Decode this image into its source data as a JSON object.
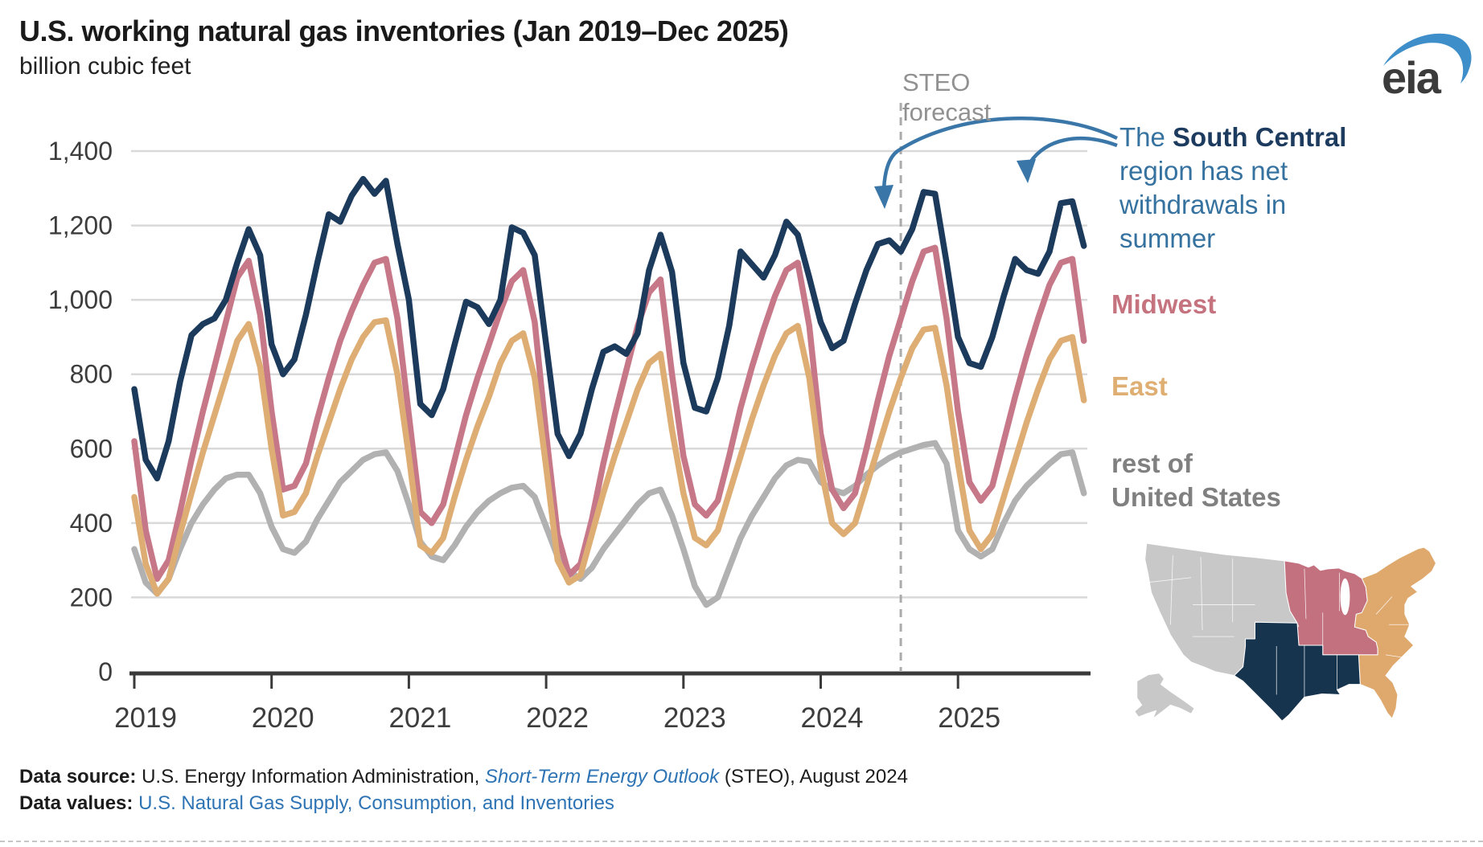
{
  "title": "U.S. working natural gas inventories (Jan 2019–Dec 2025)",
  "subtitle": "billion cubic feet",
  "logo_text": "eia",
  "forecast_label": {
    "line1": "STEO",
    "line2": "forecast"
  },
  "annotation": {
    "line1_pre": "The ",
    "line1_bold": "South Central",
    "line2": "region has net",
    "line3": "withdrawals in",
    "line4": "summer"
  },
  "series_labels": {
    "midwest": "Midwest",
    "east": "East",
    "rest_line1": "rest of",
    "rest_line2": "United States"
  },
  "footer": {
    "source_label": "Data source: ",
    "source_text": "U.S. Energy Information Administration, ",
    "source_link": "Short-Term Energy Outlook",
    "source_rest": " (STEO), August 2024",
    "values_label": "Data values: ",
    "values_link": "U.S. Natural Gas Supply, Consumption, and Inventories"
  },
  "colors": {
    "south_central": "#1c3b5c",
    "midwest": "#c77888",
    "east": "#ddad74",
    "rest_us": "#b1b1b1",
    "grid": "#d9d9d9",
    "axis": "#3a3a3a",
    "forecast_line": "#ababab",
    "arrow_blue": "#3a77a8",
    "logo_blue": "#3e8ec9",
    "logo_gray": "#3b3b3b"
  },
  "map": {
    "regions": [
      {
        "id": "west",
        "name": "rest of United States",
        "color": "#c8c8c8"
      },
      {
        "id": "midwest",
        "name": "Midwest",
        "color": "#c4717f"
      },
      {
        "id": "east",
        "name": "East",
        "color": "#dfa96e"
      },
      {
        "id": "southcentral",
        "name": "South Central",
        "color": "#17344f"
      },
      {
        "id": "alaska",
        "name": "Alaska (rest of United States)",
        "color": "#c8c8c8"
      }
    ]
  },
  "chart_data": {
    "type": "line",
    "title": "U.S. working natural gas inventories (Jan 2019–Dec 2025)",
    "xlabel": "",
    "ylabel": "billion cubic feet",
    "x_start": "2019-01",
    "x_end": "2025-12",
    "x_frequency": "monthly",
    "xtick_labels": [
      "2019",
      "2020",
      "2021",
      "2022",
      "2023",
      "2024",
      "2025"
    ],
    "ylim": [
      0,
      1400
    ],
    "ytick_values": [
      0,
      200,
      400,
      600,
      800,
      1000,
      1200,
      1400
    ],
    "ytick_labels": [
      "0",
      "200",
      "400",
      "600",
      "800",
      "1,000",
      "1,200",
      "1,400"
    ],
    "grid": "horizontal",
    "legend_position": "right-labels",
    "forecast_divider": {
      "position": "2024-08",
      "month_index": 67,
      "label": "STEO forecast"
    },
    "series": [
      {
        "name": "rest of United States",
        "color": "#b1b1b1",
        "values": [
          330,
          240,
          210,
          250,
          330,
          400,
          450,
          490,
          520,
          530,
          530,
          480,
          390,
          330,
          320,
          350,
          410,
          460,
          510,
          540,
          570,
          585,
          590,
          540,
          450,
          350,
          310,
          300,
          340,
          390,
          430,
          460,
          480,
          495,
          500,
          470,
          390,
          310,
          270,
          250,
          280,
          330,
          370,
          410,
          450,
          480,
          490,
          420,
          330,
          230,
          180,
          200,
          280,
          360,
          420,
          470,
          520,
          555,
          570,
          565,
          510,
          490,
          480,
          500,
          530,
          555,
          575,
          590,
          600,
          610,
          615,
          560,
          380,
          330,
          310,
          330,
          400,
          460,
          500,
          530,
          560,
          585,
          590,
          480
        ]
      },
      {
        "name": "Midwest",
        "color": "#c77888",
        "values": [
          620,
          380,
          250,
          300,
          430,
          570,
          700,
          820,
          940,
          1060,
          1105,
          960,
          700,
          490,
          500,
          560,
          680,
          790,
          890,
          970,
          1040,
          1100,
          1110,
          950,
          690,
          430,
          400,
          450,
          570,
          690,
          790,
          880,
          970,
          1050,
          1080,
          940,
          640,
          370,
          260,
          290,
          410,
          560,
          690,
          810,
          930,
          1020,
          1055,
          800,
          580,
          450,
          420,
          460,
          580,
          710,
          820,
          920,
          1010,
          1080,
          1100,
          930,
          640,
          490,
          440,
          480,
          600,
          730,
          850,
          950,
          1050,
          1130,
          1140,
          950,
          700,
          510,
          460,
          500,
          620,
          740,
          850,
          950,
          1040,
          1100,
          1110,
          890
        ]
      },
      {
        "name": "East",
        "color": "#ddad74",
        "values": [
          470,
          290,
          210,
          250,
          370,
          480,
          590,
          690,
          790,
          890,
          935,
          820,
          600,
          420,
          430,
          480,
          580,
          670,
          760,
          840,
          900,
          940,
          945,
          800,
          580,
          340,
          320,
          360,
          470,
          570,
          660,
          740,
          830,
          890,
          910,
          790,
          550,
          300,
          240,
          260,
          370,
          480,
          580,
          670,
          760,
          830,
          855,
          650,
          480,
          360,
          340,
          380,
          480,
          580,
          680,
          770,
          850,
          910,
          930,
          790,
          550,
          400,
          370,
          400,
          500,
          600,
          700,
          790,
          870,
          920,
          925,
          770,
          560,
          380,
          330,
          370,
          470,
          570,
          670,
          760,
          840,
          890,
          900,
          730
        ]
      },
      {
        "name": "South Central",
        "color": "#1c3b5c",
        "values": [
          760,
          570,
          520,
          620,
          780,
          905,
          935,
          950,
          1000,
          1100,
          1190,
          1120,
          880,
          800,
          840,
          960,
          1100,
          1230,
          1210,
          1280,
          1325,
          1285,
          1320,
          1150,
          1000,
          720,
          690,
          760,
          880,
          995,
          980,
          935,
          1000,
          1195,
          1180,
          1120,
          880,
          640,
          580,
          640,
          760,
          860,
          875,
          855,
          910,
          1080,
          1175,
          1075,
          830,
          710,
          700,
          790,
          930,
          1130,
          1095,
          1060,
          1120,
          1210,
          1175,
          1060,
          940,
          870,
          890,
          990,
          1080,
          1150,
          1160,
          1130,
          1190,
          1290,
          1285,
          1100,
          900,
          830,
          820,
          900,
          1010,
          1110,
          1080,
          1070,
          1130,
          1260,
          1265,
          1145
        ]
      }
    ]
  }
}
